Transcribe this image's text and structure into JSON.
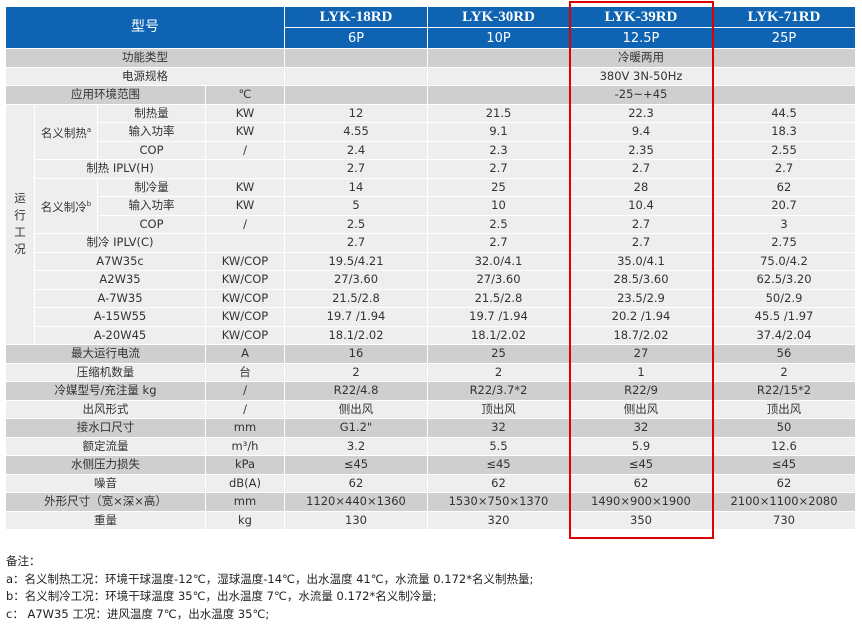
{
  "header": {
    "model_label": "型号",
    "models": [
      {
        "name": "LYK-18RD",
        "hp": "6P"
      },
      {
        "name": "LYK-30RD",
        "hp": "10P"
      },
      {
        "name": "LYK-39RD",
        "hp": "12.5P"
      },
      {
        "name": "LYK-71RD",
        "hp": "25P"
      }
    ]
  },
  "general_rows": [
    {
      "label": "功能类型",
      "unit": "",
      "values": [
        "",
        "",
        "冷暖两用",
        ""
      ]
    },
    {
      "label": "电源规格",
      "unit": "",
      "values": [
        "",
        "",
        "380V 3N-50Hz",
        ""
      ]
    },
    {
      "label": "应用环境范围",
      "unit": "℃",
      "values": [
        "",
        "",
        "-25~+45",
        ""
      ]
    }
  ],
  "operating": {
    "label": "运行工况",
    "heating": {
      "label": "名义制热",
      "sup": "a",
      "rows": [
        {
          "label": "制热量",
          "unit": "KW",
          "values": [
            "12",
            "21.5",
            "22.3",
            "44.5"
          ]
        },
        {
          "label": "输入功率",
          "unit": "KW",
          "values": [
            "4.55",
            "9.1",
            "9.4",
            "18.3"
          ]
        },
        {
          "label": "COP",
          "unit": "/",
          "values": [
            "2.4",
            "2.3",
            "2.35",
            "2.55"
          ]
        }
      ],
      "iplv": {
        "label": "制热 IPLV(H)",
        "values": [
          "2.7",
          "2.7",
          "2.7",
          "2.7"
        ]
      }
    },
    "cooling": {
      "label": "名义制冷",
      "sup": "b",
      "rows": [
        {
          "label": "制冷量",
          "unit": "KW",
          "values": [
            "14",
            "25",
            "28",
            "62"
          ]
        },
        {
          "label": "输入功率",
          "unit": "KW",
          "values": [
            "5",
            "10",
            "10.4",
            "20.7"
          ]
        },
        {
          "label": "COP",
          "unit": "/",
          "values": [
            "2.5",
            "2.5",
            "2.7",
            "3"
          ]
        }
      ],
      "iplv": {
        "label": "制冷 IPLV(C)",
        "values": [
          "2.7",
          "2.7",
          "2.7",
          "2.75"
        ]
      }
    },
    "conditions": [
      {
        "label": "A7W35c",
        "unit": "KW/COP",
        "values": [
          "19.5/4.21",
          "32.0/4.1",
          "35.0/4.1",
          "75.0/4.2"
        ]
      },
      {
        "label": "A2W35",
        "unit": "KW/COP",
        "values": [
          "27/3.60",
          "27/3.60",
          "28.5/3.60",
          "62.5/3.20"
        ]
      },
      {
        "label": "A-7W35",
        "unit": "KW/COP",
        "values": [
          "21.5/2.8",
          "21.5/2.8",
          "23.5/2.9",
          "50/2.9"
        ]
      },
      {
        "label": "A-15W55",
        "unit": "KW/COP",
        "values": [
          "19.7 /1.94",
          "19.7 /1.94",
          "20.2 /1.94",
          "45.5 /1.97"
        ]
      },
      {
        "label": "A-20W45",
        "unit": "KW/COP",
        "values": [
          "18.1/2.02",
          "18.1/2.02",
          "18.7/2.02",
          "37.4/2.04"
        ]
      }
    ]
  },
  "other_rows": [
    {
      "label": "最大运行电流",
      "unit": "A",
      "values": [
        "16",
        "25",
        "27",
        "56"
      ]
    },
    {
      "label": "压缩机数量",
      "unit": "台",
      "values": [
        "2",
        "2",
        "1",
        "2"
      ]
    },
    {
      "label": "冷媒型号/充注量 kg",
      "unit": "/",
      "values": [
        "R22/4.8",
        "R22/3.7*2",
        "R22/9",
        "R22/15*2"
      ]
    },
    {
      "label": "出风形式",
      "unit": "/",
      "values": [
        "侧出风",
        "顶出风",
        "侧出风",
        "顶出风"
      ]
    },
    {
      "label": "接水口尺寸",
      "unit": "mm",
      "values": [
        "G1.2\"",
        "32",
        "32",
        "50"
      ]
    },
    {
      "label": "额定流量",
      "unit": "m³/h",
      "values": [
        "3.2",
        "5.5",
        "5.9",
        "12.6"
      ]
    },
    {
      "label": "水侧压力损失",
      "unit": "kPa",
      "values": [
        "≤45",
        "≤45",
        "≤45",
        "≤45"
      ]
    },
    {
      "label": "噪音",
      "unit": "dB(A)",
      "values": [
        "62",
        "62",
        "62",
        "62"
      ]
    },
    {
      "label": "外形尺寸（宽×深×高）",
      "unit": "mm",
      "values": [
        "1120×440×1360",
        "1530×750×1370",
        "1490×900×1900",
        "2100×1100×2080"
      ]
    },
    {
      "label": "重量",
      "unit": "kg",
      "values": [
        "130",
        "320",
        "350",
        "730"
      ]
    }
  ],
  "highlight": {
    "model": "LYK-39RD",
    "color": "#e00000"
  },
  "colors": {
    "header_bg": "#0e63b3",
    "row_dark": "#cfcfcf",
    "row_light": "#eeeeee"
  },
  "notes": {
    "title": "备注：",
    "items": [
      "a：名义制热工况：环境干球温度-12℃，湿球温度-14℃，出水温度 41℃，水流量 0.172*名义制热量;",
      "b：名义制冷工况：环境干球温度 35℃，出水温度 7℃，水流量 0.172*名义制冷量;",
      "c： A7W35 工况：进风温度 7℃，出水温度 35℃;"
    ]
  }
}
